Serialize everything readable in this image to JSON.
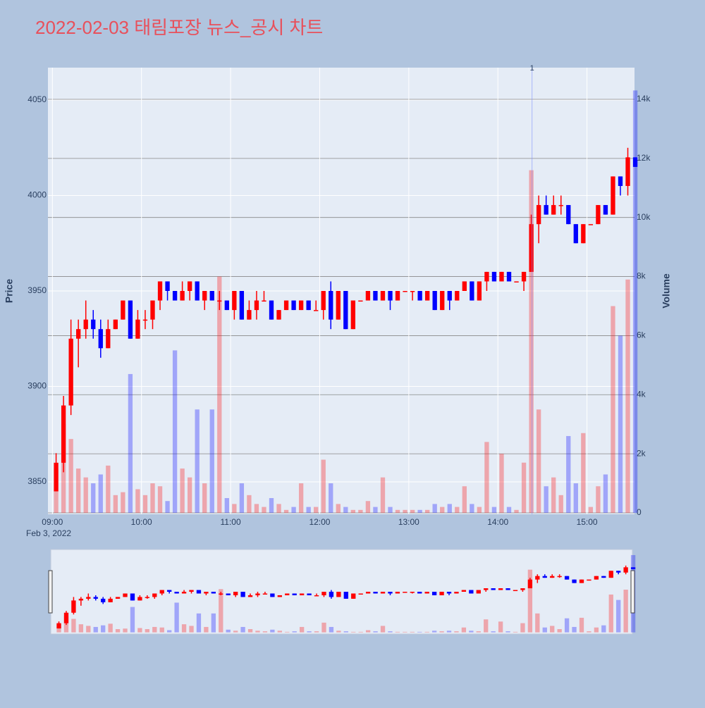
{
  "chart_data": {
    "type": "candlestick",
    "title": "2022-02-03 태림포장 뉴스_공시 차트",
    "y_label": "Price",
    "y2_label": "Volume",
    "date_label": "Feb 3, 2022",
    "increasing_color": "#ff0000",
    "decreasing_color": "#0000ff",
    "x": [
      "09:00",
      "09:05",
      "09:10",
      "09:15",
      "09:20",
      "09:25",
      "09:30",
      "09:35",
      "09:40",
      "09:45",
      "09:50",
      "09:55",
      "10:00",
      "10:05",
      "10:10",
      "10:15",
      "10:20",
      "10:25",
      "10:30",
      "10:35",
      "10:40",
      "10:45",
      "10:50",
      "10:55",
      "11:00",
      "11:05",
      "11:10",
      "11:15",
      "11:20",
      "11:25",
      "11:30",
      "11:35",
      "11:40",
      "11:45",
      "11:50",
      "11:55",
      "12:00",
      "12:05",
      "12:10",
      "12:15",
      "12:20",
      "12:25",
      "12:30",
      "12:35",
      "12:40",
      "12:45",
      "12:50",
      "12:55",
      "13:00",
      "13:05",
      "13:10",
      "13:15",
      "13:20",
      "13:25",
      "13:30",
      "13:35",
      "13:40",
      "13:45",
      "13:50",
      "13:55",
      "14:00",
      "14:05",
      "14:10",
      "14:15",
      "14:20",
      "14:25",
      "14:30",
      "14:35",
      "14:40",
      "14:45",
      "14:50",
      "14:55",
      "15:00",
      "15:05",
      "15:10",
      "15:15",
      "15:20",
      "15:25",
      "15:30"
    ],
    "open": [
      3845,
      3860,
      3890,
      3925,
      3930,
      3935,
      3930,
      3920,
      3930,
      3935,
      3945,
      3925,
      3935,
      3935,
      3945,
      3955,
      3950,
      3945,
      3950,
      3955,
      3945,
      3950,
      3945,
      3945,
      3940,
      3950,
      3935,
      3940,
      3945,
      3945,
      3935,
      3940,
      3945,
      3940,
      3945,
      3940,
      3940,
      3950,
      3935,
      3950,
      3930,
      3945,
      3945,
      3950,
      3945,
      3950,
      3945,
      3950,
      3950,
      3950,
      3945,
      3950,
      3940,
      3950,
      3945,
      3950,
      3955,
      3945,
      3955,
      3960,
      3955,
      3960,
      3955,
      3955,
      3960,
      3985,
      3995,
      3990,
      3995,
      3995,
      3985,
      3975,
      3985,
      3985,
      3995,
      3990,
      4010,
      4005,
      4020
    ],
    "high": [
      3865,
      3895,
      3935,
      3935,
      3945,
      3940,
      3935,
      3935,
      3935,
      3945,
      3945,
      3940,
      3940,
      3945,
      3955,
      3955,
      3950,
      3955,
      3955,
      3955,
      3950,
      3950,
      3950,
      3945,
      3950,
      3950,
      3945,
      3950,
      3950,
      3945,
      3940,
      3945,
      3945,
      3945,
      3945,
      3945,
      3950,
      3955,
      3950,
      3950,
      3945,
      3945,
      3950,
      3950,
      3950,
      3950,
      3950,
      3950,
      3950,
      3950,
      3950,
      3950,
      3950,
      3950,
      3950,
      3955,
      3955,
      3955,
      3960,
      3960,
      3960,
      3960,
      3955,
      3960,
      3990,
      4000,
      4000,
      4000,
      4000,
      3995,
      3985,
      3985,
      3985,
      3995,
      3995,
      4010,
      4010,
      4025,
      4020
    ],
    "low": [
      3845,
      3855,
      3885,
      3910,
      3925,
      3925,
      3915,
      3920,
      3930,
      3935,
      3925,
      3925,
      3930,
      3930,
      3940,
      3945,
      3945,
      3945,
      3945,
      3945,
      3940,
      3945,
      3940,
      3940,
      3935,
      3935,
      3935,
      3935,
      3945,
      3935,
      3935,
      3940,
      3940,
      3940,
      3940,
      3940,
      3935,
      3930,
      3935,
      3930,
      3930,
      3945,
      3945,
      3945,
      3945,
      3940,
      3945,
      3950,
      3945,
      3945,
      3945,
      3940,
      3940,
      3940,
      3945,
      3950,
      3945,
      3945,
      3950,
      3955,
      3955,
      3955,
      3955,
      3950,
      3960,
      3975,
      3990,
      3990,
      3990,
      3985,
      3975,
      3975,
      3985,
      3985,
      3990,
      3990,
      4000,
      4000,
      4015
    ],
    "close": [
      3860,
      3890,
      3925,
      3930,
      3935,
      3930,
      3920,
      3930,
      3935,
      3945,
      3925,
      3935,
      3935,
      3945,
      3955,
      3950,
      3945,
      3950,
      3955,
      3945,
      3950,
      3945,
      3945,
      3940,
      3950,
      3935,
      3940,
      3945,
      3945,
      3935,
      3940,
      3945,
      3940,
      3945,
      3940,
      3940,
      3950,
      3935,
      3950,
      3930,
      3945,
      3945,
      3950,
      3945,
      3950,
      3945,
      3950,
      3950,
      3950,
      3945,
      3950,
      3940,
      3950,
      3945,
      3950,
      3955,
      3945,
      3955,
      3960,
      3955,
      3960,
      3955,
      3955,
      3960,
      3985,
      3995,
      3990,
      3995,
      3995,
      3985,
      3975,
      3985,
      3985,
      3995,
      3990,
      4010,
      4005,
      4020,
      4015
    ],
    "volume": [
      1500,
      3000,
      2500,
      1500,
      1200,
      1000,
      1300,
      1600,
      600,
      700,
      4700,
      800,
      600,
      1000,
      900,
      400,
      5500,
      1500,
      1200,
      3500,
      1000,
      3500,
      8000,
      500,
      300,
      1000,
      600,
      300,
      200,
      500,
      300,
      100,
      200,
      1000,
      200,
      200,
      1800,
      1000,
      300,
      200,
      100,
      100,
      400,
      200,
      1200,
      200,
      100,
      100,
      100,
      100,
      100,
      300,
      200,
      300,
      200,
      900,
      300,
      200,
      2400,
      200,
      2000,
      200,
      100,
      1700,
      11600,
      3500,
      900,
      1200,
      600,
      2600,
      1000,
      2700,
      200,
      900,
      1300,
      7000,
      6000,
      7900,
      14300
    ],
    "xlim": [
      "08:57",
      "15:32"
    ],
    "xticks": [
      "09:00",
      "10:00",
      "11:00",
      "12:00",
      "13:00",
      "14:00",
      "15:00"
    ],
    "ylim": [
      3833,
      4067
    ],
    "yticks": [
      3850,
      3900,
      3950,
      4000,
      4050
    ],
    "y2lim": [
      -48,
      15073
    ],
    "y2ticks": [
      0,
      {
        "value": 2000,
        "label": "2k"
      },
      {
        "value": 4000,
        "label": "4k"
      },
      {
        "value": 6000,
        "label": "6k"
      },
      {
        "value": 8000,
        "label": "8k"
      },
      {
        "value": 10000,
        "label": "10k"
      },
      {
        "value": 12000,
        "label": "12k"
      },
      {
        "value": 14000,
        "label": "14k"
      }
    ],
    "grid": true,
    "annotations": [
      {
        "x": "14:23",
        "text": "1"
      }
    ]
  }
}
